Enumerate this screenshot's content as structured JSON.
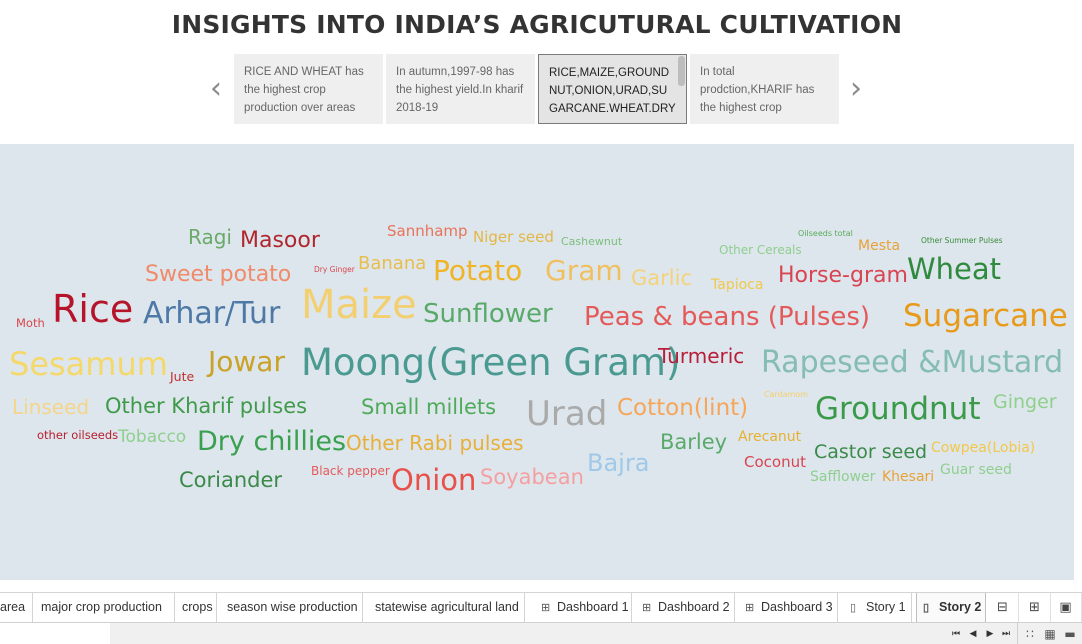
{
  "title": "INSIGHTS INTO INDIA’S AGRICUTURAL CULTIVATION",
  "nav": {
    "prev_icon": "chevron-left-icon",
    "next_icon": "chevron-right-icon",
    "prev_glyph": "‹",
    "next_glyph": "›"
  },
  "story_points": [
    {
      "text": "RICE AND WHEAT has the highest crop production over areas"
    },
    {
      "text": "In autumn,1997-98 has the highest yield.In kharif 2018-19"
    },
    {
      "text": "RICE,MAIZE,GROUNDNUT,ONION,URAD,SUGARCANE.WHEAT.DRY"
    },
    {
      "text": "In total prodction,KHARIF has the highest crop"
    }
  ],
  "word_cloud": {
    "background": "#dde6ec",
    "words": [
      {
        "text": "Ragi",
        "color": "#6aaa6a"
      },
      {
        "text": "Masoor",
        "color": "#b0262e"
      },
      {
        "text": "Sannhamp",
        "color": "#e8735a"
      },
      {
        "text": "Niger seed",
        "color": "#e3b745"
      },
      {
        "text": "Cashewnut",
        "color": "#7cbf7c"
      },
      {
        "text": "Oilseeds total",
        "color": "#5aaa5a"
      },
      {
        "text": "Other Cereals",
        "color": "#8fcf8f"
      },
      {
        "text": "Mesta",
        "color": "#e8a23a"
      },
      {
        "text": "Other Summer Pulses",
        "color": "#3a8a3a"
      },
      {
        "text": "Sweet potato",
        "color": "#f08a6a"
      },
      {
        "text": "Dry Ginger",
        "color": "#d9464e"
      },
      {
        "text": "Banana",
        "color": "#e9bd4c"
      },
      {
        "text": "Potato",
        "color": "#f0b429"
      },
      {
        "text": "Gram",
        "color": "#f0c060"
      },
      {
        "text": "Garlic",
        "color": "#f5d27a"
      },
      {
        "text": "Tapioca",
        "color": "#f2c84a"
      },
      {
        "text": "Horse-gram",
        "color": "#d94452"
      },
      {
        "text": "Wheat",
        "color": "#2f8a3e"
      },
      {
        "text": "Moth",
        "color": "#d9464e"
      },
      {
        "text": "Rice",
        "color": "#b5142a"
      },
      {
        "text": "Arhar/Tur",
        "color": "#4e79a7"
      },
      {
        "text": "Maize",
        "color": "#f2cf70"
      },
      {
        "text": "Sunflower",
        "color": "#59a96a"
      },
      {
        "text": "Peas & beans (Pulses)",
        "color": "#e45a5a"
      },
      {
        "text": "Sugarcane",
        "color": "#e89a1a"
      },
      {
        "text": "Sesamum",
        "color": "#f5d86a"
      },
      {
        "text": "Jute",
        "color": "#c0302e"
      },
      {
        "text": "Jowar",
        "color": "#c9a227"
      },
      {
        "text": "Moong(Green Gram)",
        "color": "#4a9a92"
      },
      {
        "text": "Turmeric",
        "color": "#b81e3a"
      },
      {
        "text": "Rapeseed &Mustard",
        "color": "#86bcb6"
      },
      {
        "text": "Linseed",
        "color": "#f5d58a"
      },
      {
        "text": "Other Kharif pulses",
        "color": "#3f9a4a"
      },
      {
        "text": "Small millets",
        "color": "#4faa5a"
      },
      {
        "text": "Urad",
        "color": "#aaaaaa"
      },
      {
        "text": "Cotton(lint)",
        "color": "#f5a65a"
      },
      {
        "text": "Cardamom",
        "color": "#f5cf6a"
      },
      {
        "text": "Groundnut",
        "color": "#3a9a4a"
      },
      {
        "text": "Ginger",
        "color": "#8fd08a"
      },
      {
        "text": "other oilseeds",
        "color": "#b81e2e"
      },
      {
        "text": "Tobacco",
        "color": "#8fcf8f"
      },
      {
        "text": "Dry chillies",
        "color": "#3aa050"
      },
      {
        "text": "Other Rabi pulses",
        "color": "#e8b03a"
      },
      {
        "text": "Barley",
        "color": "#59aa6a"
      },
      {
        "text": "Arecanut",
        "color": "#e8b030"
      },
      {
        "text": "Castor seed",
        "color": "#3a8a4a"
      },
      {
        "text": "Cowpea(Lobia)",
        "color": "#f2c84a"
      },
      {
        "text": "Coconut",
        "color": "#d94452"
      },
      {
        "text": "Bajra",
        "color": "#a0c8e8"
      },
      {
        "text": "Black pepper",
        "color": "#e45a5a"
      },
      {
        "text": "Onion",
        "color": "#e8504a"
      },
      {
        "text": "Soyabean",
        "color": "#f5a0a0"
      },
      {
        "text": "Safflower",
        "color": "#8fcf8f"
      },
      {
        "text": "Khesari",
        "color": "#e8a23a"
      },
      {
        "text": "Guar seed",
        "color": "#8fcf8f"
      },
      {
        "text": "Coriander",
        "color": "#3a8a4a"
      }
    ]
  },
  "sheet_tabs": [
    {
      "label": "area",
      "icon": ""
    },
    {
      "label": "major crop production",
      "icon": ""
    },
    {
      "label": "crops",
      "icon": ""
    },
    {
      "label": "season wise production",
      "icon": ""
    },
    {
      "label": "statewise agricultural land",
      "icon": ""
    },
    {
      "label": "Dashboard 1",
      "icon": "dashboard-icon",
      "glyph": "⊞"
    },
    {
      "label": "Dashboard 2",
      "icon": "dashboard-icon",
      "glyph": "⊞"
    },
    {
      "label": "Dashboard 3",
      "icon": "dashboard-icon",
      "glyph": "⊞"
    },
    {
      "label": "Story 1",
      "icon": "story-icon",
      "glyph": "▯"
    },
    {
      "label": "Story 2",
      "icon": "story-icon",
      "glyph": "▯",
      "active": true
    }
  ],
  "tab_tools": [
    {
      "name": "new-worksheet-icon",
      "glyph": "⊟"
    },
    {
      "name": "new-dashboard-icon",
      "glyph": "⊞"
    },
    {
      "name": "new-story-icon",
      "glyph": "▣"
    }
  ],
  "status": {
    "nav_glyphs": [
      "⏮",
      "◀",
      "▶",
      "⏭"
    ],
    "view_glyphs": [
      "∷",
      "▦",
      "▬"
    ]
  }
}
